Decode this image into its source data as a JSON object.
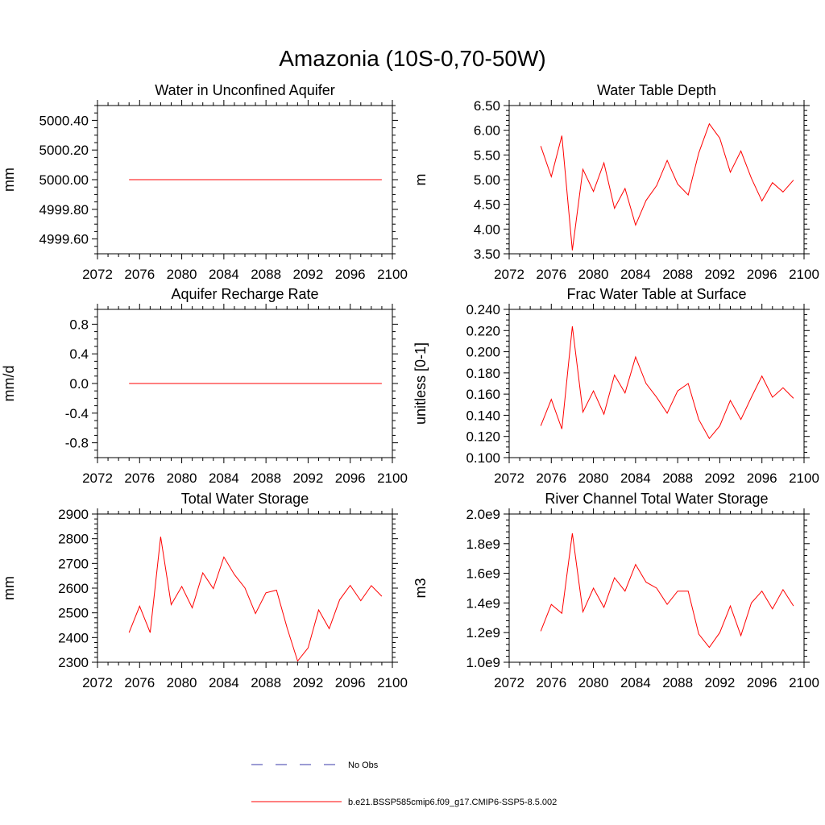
{
  "title": "Amazonia (10S-0,70-50W)",
  "colors": {
    "model": "#ff0000",
    "obs": "#3a3aa8"
  },
  "legend": {
    "obs_label": "No Obs",
    "model_label": "b.e21.BSSP585cmip6.f09_g17.CMIP6-SSP5-8.5.002"
  },
  "chart_data": [
    {
      "type": "line",
      "title": "Water in Unconfined Aquifer",
      "ylabel": "mm",
      "xlim": [
        2072,
        2100
      ],
      "xticks": [
        2072,
        2076,
        2080,
        2084,
        2088,
        2092,
        2096,
        2100
      ],
      "xtick_labels": [
        "2072",
        "2076",
        "2080",
        "2084",
        "2088",
        "2092",
        "2096",
        "2100"
      ],
      "ylim": [
        4999.5,
        5000.5
      ],
      "yticks": [
        4999.6,
        4999.8,
        5000.0,
        5000.2,
        5000.4
      ],
      "ytick_labels": [
        "4999.60",
        "4999.80",
        "5000.00",
        "5000.20",
        "5000.40"
      ],
      "yminor": 0.05,
      "x": [
        2075,
        2076,
        2077,
        2078,
        2079,
        2080,
        2081,
        2082,
        2083,
        2084,
        2085,
        2086,
        2087,
        2088,
        2089,
        2090,
        2091,
        2092,
        2093,
        2094,
        2095,
        2096,
        2097,
        2098,
        2099
      ],
      "values": [
        5000,
        5000,
        5000,
        5000,
        5000,
        5000,
        5000,
        5000,
        5000,
        5000,
        5000,
        5000,
        5000,
        5000,
        5000,
        5000,
        5000,
        5000,
        5000,
        5000,
        5000,
        5000,
        5000,
        5000,
        5000
      ]
    },
    {
      "type": "line",
      "title": "Water Table Depth",
      "ylabel": "m",
      "xlim": [
        2072,
        2100
      ],
      "xticks": [
        2072,
        2076,
        2080,
        2084,
        2088,
        2092,
        2096,
        2100
      ],
      "xtick_labels": [
        "2072",
        "2076",
        "2080",
        "2084",
        "2088",
        "2092",
        "2096",
        "2100"
      ],
      "ylim": [
        3.5,
        6.5
      ],
      "yticks": [
        3.5,
        4.0,
        4.5,
        5.0,
        5.5,
        6.0,
        6.5
      ],
      "ytick_labels": [
        "3.50",
        "4.00",
        "4.50",
        "5.00",
        "5.50",
        "6.00",
        "6.50"
      ],
      "yminor": 0.1,
      "x": [
        2075,
        2076,
        2077,
        2078,
        2079,
        2080,
        2081,
        2082,
        2083,
        2084,
        2085,
        2086,
        2087,
        2088,
        2089,
        2090,
        2091,
        2092,
        2093,
        2094,
        2095,
        2096,
        2097,
        2098,
        2099
      ],
      "values": [
        5.68,
        5.06,
        5.89,
        3.57,
        5.21,
        4.76,
        5.34,
        4.42,
        4.82,
        4.08,
        4.58,
        4.88,
        5.39,
        4.91,
        4.69,
        5.54,
        6.13,
        5.84,
        5.15,
        5.58,
        5.03,
        4.57,
        4.94,
        4.75,
        4.99
      ]
    },
    {
      "type": "line",
      "title": "Aquifer Recharge Rate",
      "ylabel": "mm/d",
      "xlim": [
        2072,
        2100
      ],
      "xticks": [
        2072,
        2076,
        2080,
        2084,
        2088,
        2092,
        2096,
        2100
      ],
      "xtick_labels": [
        "2072",
        "2076",
        "2080",
        "2084",
        "2088",
        "2092",
        "2096",
        "2100"
      ],
      "ylim": [
        -1.0,
        1.0
      ],
      "yticks": [
        -0.8,
        -0.4,
        0.0,
        0.4,
        0.8
      ],
      "ytick_labels": [
        "-0.8",
        "-0.4",
        "0.0",
        "0.4",
        "0.8"
      ],
      "yminor": 0.1,
      "x": [
        2075,
        2076,
        2077,
        2078,
        2079,
        2080,
        2081,
        2082,
        2083,
        2084,
        2085,
        2086,
        2087,
        2088,
        2089,
        2090,
        2091,
        2092,
        2093,
        2094,
        2095,
        2096,
        2097,
        2098,
        2099
      ],
      "values": [
        0,
        0,
        0,
        0,
        0,
        0,
        0,
        0,
        0,
        0,
        0,
        0,
        0,
        0,
        0,
        0,
        0,
        0,
        0,
        0,
        0,
        0,
        0,
        0,
        0
      ]
    },
    {
      "type": "line",
      "title": "Frac Water Table at Surface",
      "ylabel": "unitless [0-1]",
      "xlim": [
        2072,
        2100
      ],
      "xticks": [
        2072,
        2076,
        2080,
        2084,
        2088,
        2092,
        2096,
        2100
      ],
      "xtick_labels": [
        "2072",
        "2076",
        "2080",
        "2084",
        "2088",
        "2092",
        "2096",
        "2100"
      ],
      "ylim": [
        0.1,
        0.24
      ],
      "yticks": [
        0.1,
        0.12,
        0.14,
        0.16,
        0.18,
        0.2,
        0.22,
        0.24
      ],
      "ytick_labels": [
        "0.100",
        "0.120",
        "0.140",
        "0.160",
        "0.180",
        "0.200",
        "0.220",
        "0.240"
      ],
      "yminor": 0.005,
      "x": [
        2075,
        2076,
        2077,
        2078,
        2079,
        2080,
        2081,
        2082,
        2083,
        2084,
        2085,
        2086,
        2087,
        2088,
        2089,
        2090,
        2091,
        2092,
        2093,
        2094,
        2095,
        2096,
        2097,
        2098,
        2099
      ],
      "values": [
        0.13,
        0.155,
        0.127,
        0.224,
        0.143,
        0.163,
        0.141,
        0.178,
        0.161,
        0.195,
        0.17,
        0.157,
        0.142,
        0.163,
        0.17,
        0.136,
        0.118,
        0.13,
        0.154,
        0.136,
        0.157,
        0.177,
        0.157,
        0.166,
        0.156
      ]
    },
    {
      "type": "line",
      "title": "Total Water Storage",
      "ylabel": "mm",
      "xlim": [
        2072,
        2100
      ],
      "xticks": [
        2072,
        2076,
        2080,
        2084,
        2088,
        2092,
        2096,
        2100
      ],
      "xtick_labels": [
        "2072",
        "2076",
        "2080",
        "2084",
        "2088",
        "2092",
        "2096",
        "2100"
      ],
      "ylim": [
        2300,
        2900
      ],
      "yticks": [
        2300,
        2400,
        2500,
        2600,
        2700,
        2800,
        2900
      ],
      "ytick_labels": [
        "2300",
        "2400",
        "2500",
        "2600",
        "2700",
        "2800",
        "2900"
      ],
      "yminor": 20,
      "x": [
        2075,
        2076,
        2077,
        2078,
        2079,
        2080,
        2081,
        2082,
        2083,
        2084,
        2085,
        2086,
        2087,
        2088,
        2089,
        2090,
        2091,
        2092,
        2093,
        2094,
        2095,
        2096,
        2097,
        2098,
        2099
      ],
      "values": [
        2420,
        2527,
        2420,
        2808,
        2533,
        2607,
        2520,
        2662,
        2598,
        2726,
        2655,
        2601,
        2497,
        2581,
        2592,
        2440,
        2305,
        2358,
        2512,
        2436,
        2553,
        2611,
        2549,
        2610,
        2567
      ]
    },
    {
      "type": "line",
      "title": "River Channel Total Water Storage",
      "ylabel": "m3",
      "xlim": [
        2072,
        2100
      ],
      "xticks": [
        2072,
        2076,
        2080,
        2084,
        2088,
        2092,
        2096,
        2100
      ],
      "xtick_labels": [
        "2072",
        "2076",
        "2080",
        "2084",
        "2088",
        "2092",
        "2096",
        "2100"
      ],
      "ylim": [
        1000000000.0,
        2000000000.0
      ],
      "yticks": [
        1000000000.0,
        1200000000.0,
        1400000000.0,
        1600000000.0,
        1800000000.0,
        2000000000.0
      ],
      "ytick_labels": [
        "1.0e9",
        "1.2e9",
        "1.4e9",
        "1.6e9",
        "1.8e9",
        "2.0e9"
      ],
      "yminor": 40000000.0,
      "x": [
        2075,
        2076,
        2077,
        2078,
        2079,
        2080,
        2081,
        2082,
        2083,
        2084,
        2085,
        2086,
        2087,
        2088,
        2089,
        2090,
        2091,
        2092,
        2093,
        2094,
        2095,
        2096,
        2097,
        2098,
        2099
      ],
      "values": [
        1210000000.0,
        1390000000.0,
        1330000000.0,
        1870000000.0,
        1340000000.0,
        1500000000.0,
        1370000000.0,
        1570000000.0,
        1480000000.0,
        1660000000.0,
        1540000000.0,
        1500000000.0,
        1390000000.0,
        1480000000.0,
        1480000000.0,
        1190000000.0,
        1100000000.0,
        1200000000.0,
        1380000000.0,
        1180000000.0,
        1400000000.0,
        1480000000.0,
        1360000000.0,
        1490000000.0,
        1380000000.0
      ]
    }
  ]
}
